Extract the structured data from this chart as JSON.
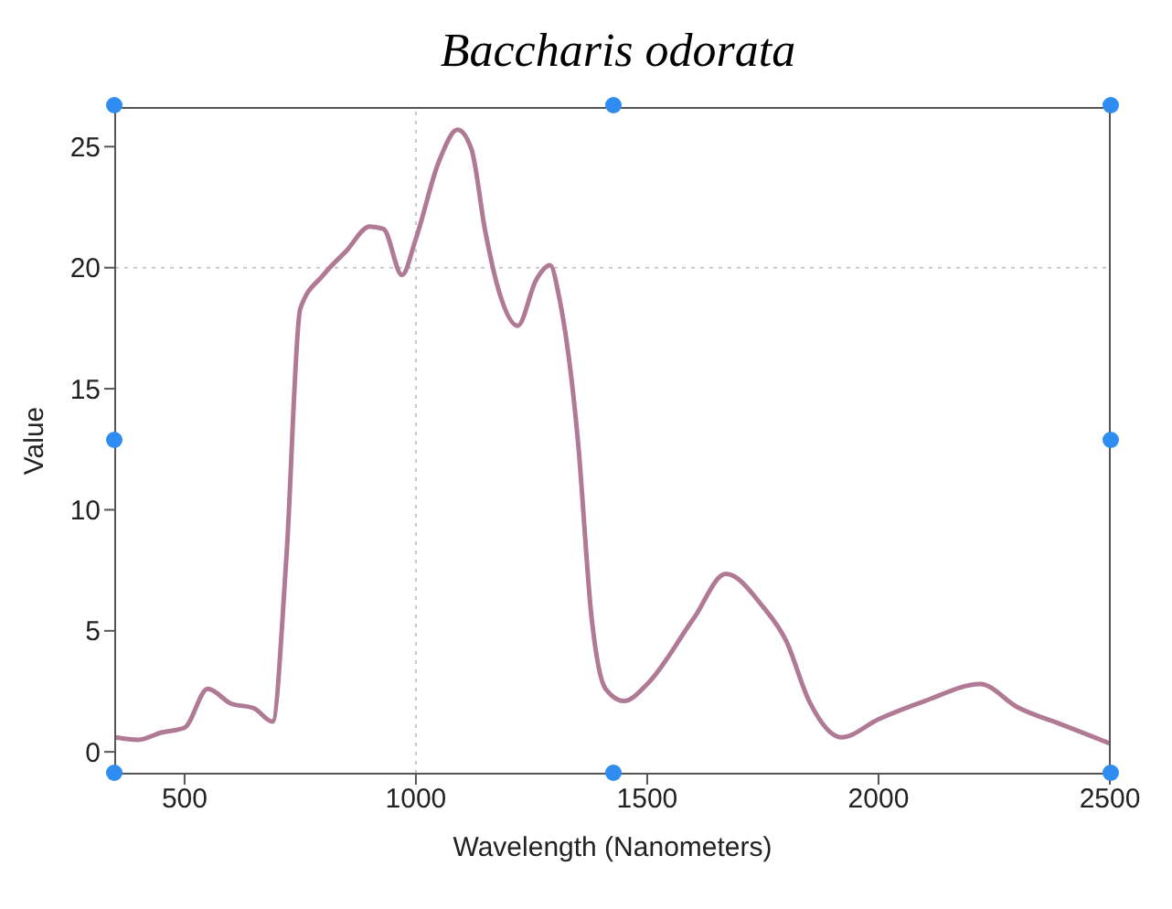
{
  "chart_data": {
    "type": "line",
    "title": "Baccharis odorata",
    "xlabel": "Wavelength (Nanometers)",
    "ylabel": "Value",
    "x": [
      350,
      400,
      450,
      500,
      550,
      600,
      650,
      690,
      720,
      750,
      800,
      850,
      900,
      930,
      970,
      1000,
      1050,
      1090,
      1120,
      1150,
      1180,
      1220,
      1260,
      1290,
      1310,
      1350,
      1380,
      1410,
      1450,
      1500,
      1600,
      1670,
      1750,
      1800,
      1850,
      1920,
      2000,
      2100,
      2220,
      2300,
      2400,
      2500
    ],
    "series": [
      {
        "color": "#b07a95",
        "values": [
          0.6,
          0.5,
          0.8,
          1.0,
          2.6,
          2.0,
          1.8,
          1.25,
          8,
          18.3,
          19.7,
          20.7,
          21.7,
          21.6,
          19.7,
          21.2,
          24.4,
          25.7,
          24.9,
          21.5,
          19.0,
          17.6,
          19.5,
          20.1,
          18.75,
          12.9,
          5.5,
          2.6,
          2.1,
          2.8,
          5.5,
          7.35,
          6.0,
          4.6,
          2.1,
          0.6,
          1.35,
          2.1,
          2.8,
          1.85,
          1.1,
          0.35
        ]
      }
    ],
    "xlim": [
      350,
      2500
    ],
    "xticks": [
      500,
      1000,
      1500,
      2000,
      2500
    ],
    "ylim": [
      -0.9,
      26.6
    ],
    "yticks": [
      0,
      5,
      10,
      15,
      20,
      25
    ],
    "ref_lines": [
      {
        "axis": "x",
        "value": 1000,
        "color": "#c8c8c8",
        "line_style": "dotted"
      },
      {
        "axis": "y",
        "value": 20,
        "color": "#c8c8c8",
        "line_style": "dotted"
      }
    ],
    "marker": "none",
    "line_style": "solid"
  }
}
